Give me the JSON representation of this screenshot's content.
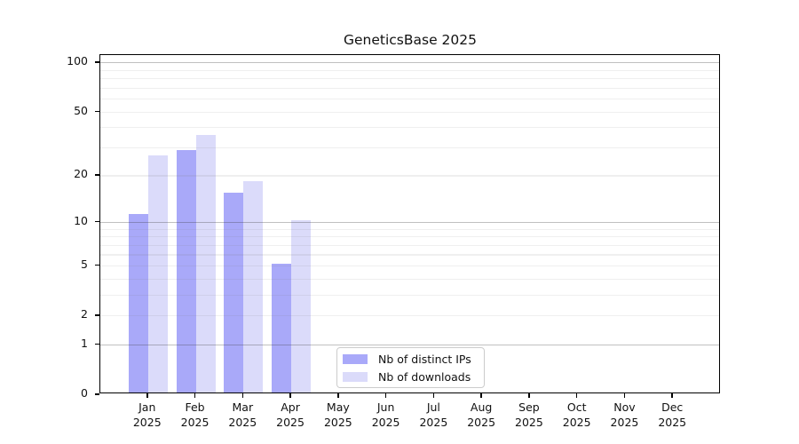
{
  "title": "GeneticsBase 2025",
  "chart_data": {
    "type": "bar",
    "title": "GeneticsBase 2025",
    "xlabel": "",
    "ylabel": "",
    "categories": [
      "Jan",
      "Feb",
      "Mar",
      "Apr",
      "May",
      "Jun",
      "Jul",
      "Aug",
      "Sep",
      "Oct",
      "Nov",
      "Dec"
    ],
    "x_year_label": "2025",
    "series": [
      {
        "name": "Nb of distinct IPs",
        "color": "#a9a9f9",
        "values": [
          11,
          28,
          15,
          5,
          0,
          0,
          0,
          0,
          0,
          0,
          0,
          0
        ]
      },
      {
        "name": "Nb of downloads",
        "color": "#dbdbfa",
        "values": [
          26,
          35,
          18,
          10,
          0,
          0,
          0,
          0,
          0,
          0,
          0,
          0
        ]
      }
    ],
    "y_scale": "log1p",
    "y_ticks": [
      0,
      1,
      2,
      5,
      10,
      20,
      50,
      100
    ],
    "y_major_gridlines": [
      1,
      10,
      100
    ],
    "y_minor_gridlines": [
      2,
      3,
      4,
      5,
      6,
      7,
      8,
      9,
      20,
      30,
      40,
      50,
      60,
      70,
      80,
      90
    ],
    "ylim": [
      0,
      110
    ],
    "grid": true,
    "legend_position": "lower center",
    "axis_color": "#000000",
    "major_grid_color": "#c6c6c6",
    "minor_grid_color": "#efefef"
  }
}
